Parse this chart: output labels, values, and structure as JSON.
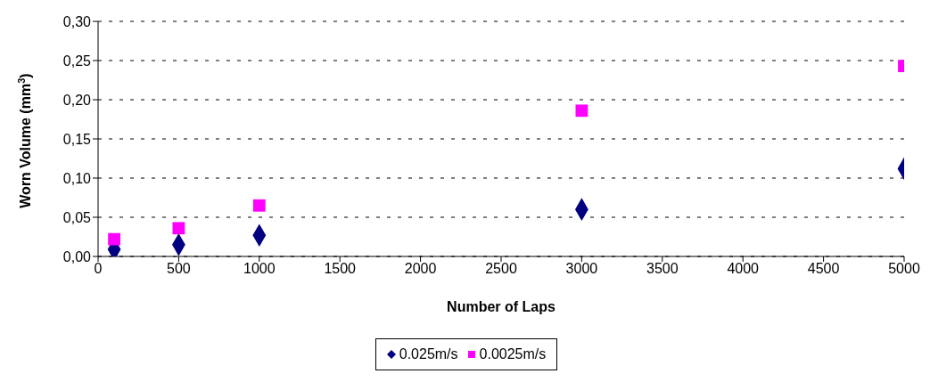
{
  "chart_data": {
    "type": "scatter",
    "xlabel": "Number of Laps",
    "ylabel": "Worn Volume (mm$^{3}$)",
    "x": [
      100,
      500,
      1000,
      3000,
      5000
    ],
    "series": [
      {
        "name": "0.025m/s",
        "color": "#000080",
        "marker": "diamond",
        "values": [
          0.009,
          0.015,
          0.027,
          0.06,
          0.112
        ]
      },
      {
        "name": "0.0025m/s",
        "color": "#ff00ff",
        "marker": "square",
        "values": [
          0.022,
          0.036,
          0.065,
          0.186,
          0.243
        ]
      }
    ],
    "xlim": [
      0,
      5000
    ],
    "xticks": [
      0,
      500,
      1000,
      1500,
      2000,
      2500,
      3000,
      3500,
      4000,
      4500,
      5000
    ],
    "ylim": [
      0,
      0.3
    ],
    "yticks": [
      {
        "value": 0,
        "label": "0,00"
      },
      {
        "value": 0.05,
        "label": "0,05"
      },
      {
        "value": 0.1,
        "label": "0,10"
      },
      {
        "value": 0.15,
        "label": "0,15"
      },
      {
        "value": 0.2,
        "label": "0,20"
      },
      {
        "value": 0.25,
        "label": "0,25"
      },
      {
        "value": 0.3,
        "label": "0,30"
      }
    ],
    "grid": "y",
    "legend": "bottom"
  }
}
